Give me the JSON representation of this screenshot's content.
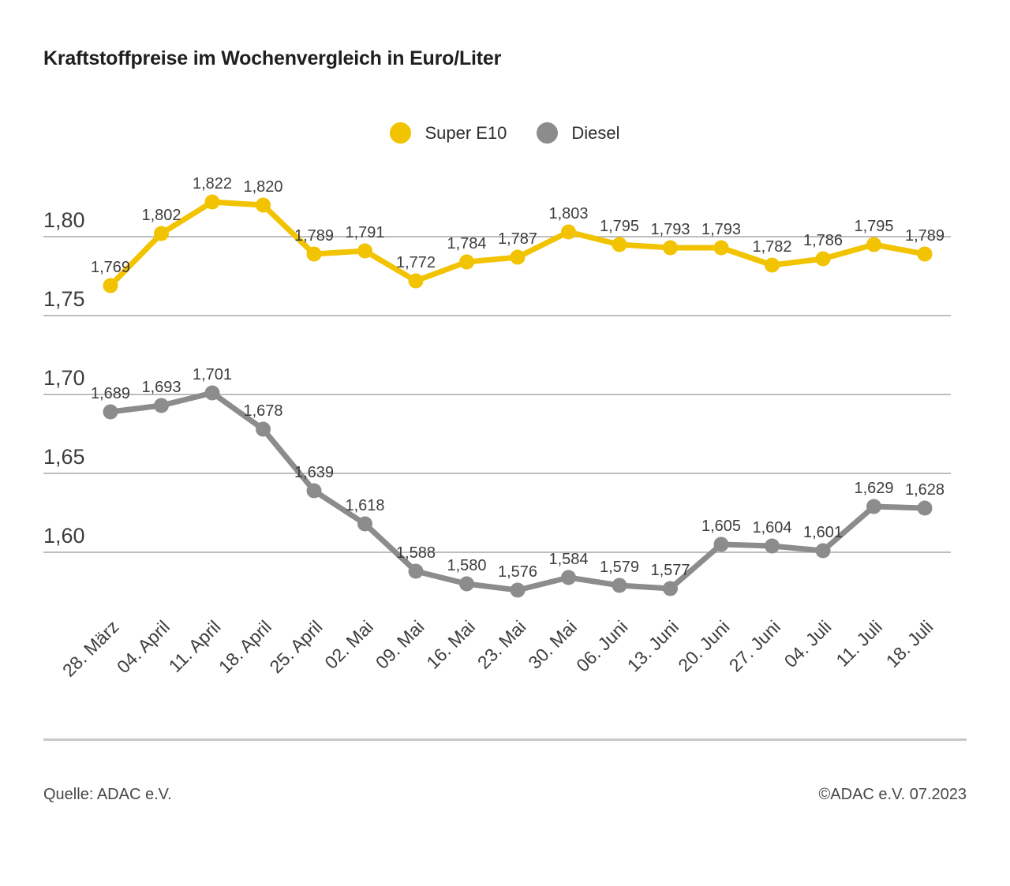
{
  "title": "Kraftstoffpreise im Wochenvergleich in Euro/Liter",
  "footer": {
    "source": "Quelle: ADAC e.V.",
    "copyright": "©ADAC e.V. 07.2023"
  },
  "colors": {
    "super_e10": "#f2c300",
    "diesel": "#8c8c8c",
    "gridline": "#a9a9a9",
    "axis_text": "#3d3d3d",
    "label_text": "#3d3d3d",
    "divider": "#c8c8c8"
  },
  "chart_data": {
    "type": "line",
    "title": "Kraftstoffpreise im Wochenvergleich in Euro/Liter",
    "unit": "Euro/Liter",
    "x": [
      "28. März",
      "04. April",
      "11. April",
      "18. April",
      "25. April",
      "02. Mai",
      "09. Mai",
      "16. Mai",
      "23. Mai",
      "30. Mai",
      "06. Juni",
      "13. Juni",
      "20. Juni",
      "27. Juni",
      "04. Juli",
      "11. Juli",
      "18. Juli"
    ],
    "series": [
      {
        "name": "Super E10",
        "color": "#f2c300",
        "values": [
          1.769,
          1.802,
          1.822,
          1.82,
          1.789,
          1.791,
          1.772,
          1.784,
          1.787,
          1.803,
          1.795,
          1.793,
          1.793,
          1.782,
          1.786,
          1.795,
          1.789
        ],
        "value_labels": [
          "1,769",
          "1,802",
          "1,822",
          "1,820",
          "1,789",
          "1,791",
          "1,772",
          "1,784",
          "1,787",
          "1,803",
          "1,795",
          "1,793",
          "1,793",
          "1,782",
          "1,786",
          "1,795",
          "1,789"
        ]
      },
      {
        "name": "Diesel",
        "color": "#8c8c8c",
        "values": [
          1.689,
          1.693,
          1.701,
          1.678,
          1.639,
          1.618,
          1.588,
          1.58,
          1.576,
          1.584,
          1.579,
          1.577,
          1.605,
          1.604,
          1.601,
          1.629,
          1.628
        ],
        "value_labels": [
          "1,689",
          "1,693",
          "1,701",
          "1,678",
          "1,639",
          "1,618",
          "1,588",
          "1,580",
          "1,576",
          "1,584",
          "1,579",
          "1,577",
          "1,605",
          "1,604",
          "1,601",
          "1,629",
          "1,628"
        ]
      }
    ],
    "yticks": [
      1.8,
      1.75,
      1.7,
      1.65,
      1.6
    ],
    "ytick_labels": [
      "1,80",
      "1,75",
      "1,70",
      "1,65",
      "1,60"
    ],
    "ylim": [
      1.55,
      1.85
    ],
    "grid": true,
    "legend_position": "top"
  }
}
